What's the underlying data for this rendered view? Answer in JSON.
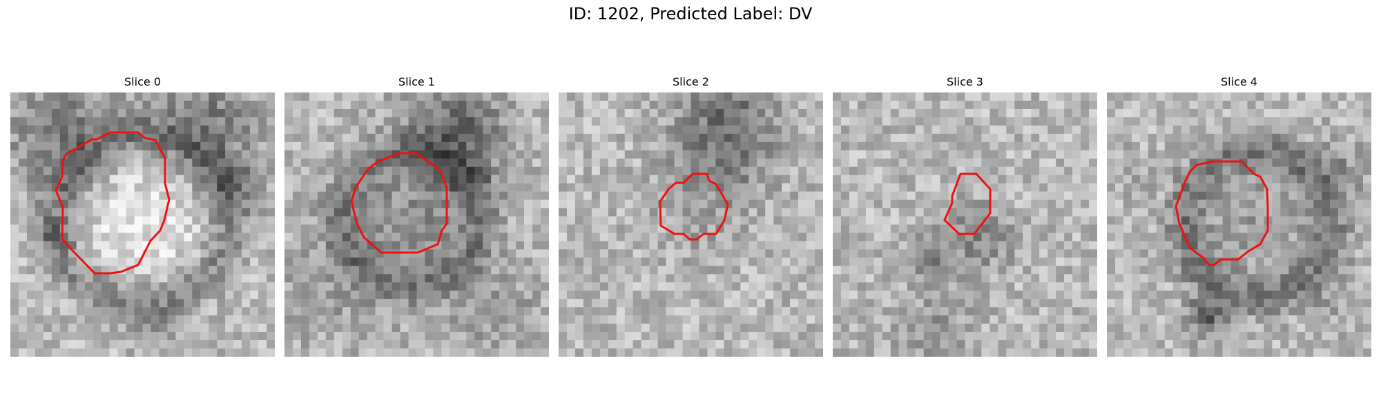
{
  "figure": {
    "title": "ID: 1202, Predicted Label: DV"
  },
  "contour_color": "#ee1111",
  "slices": [
    {
      "label": "Slice 0"
    },
    {
      "label": "Slice 1"
    },
    {
      "label": "Slice 2"
    },
    {
      "label": "Slice 3"
    },
    {
      "label": "Slice 4"
    }
  ]
}
